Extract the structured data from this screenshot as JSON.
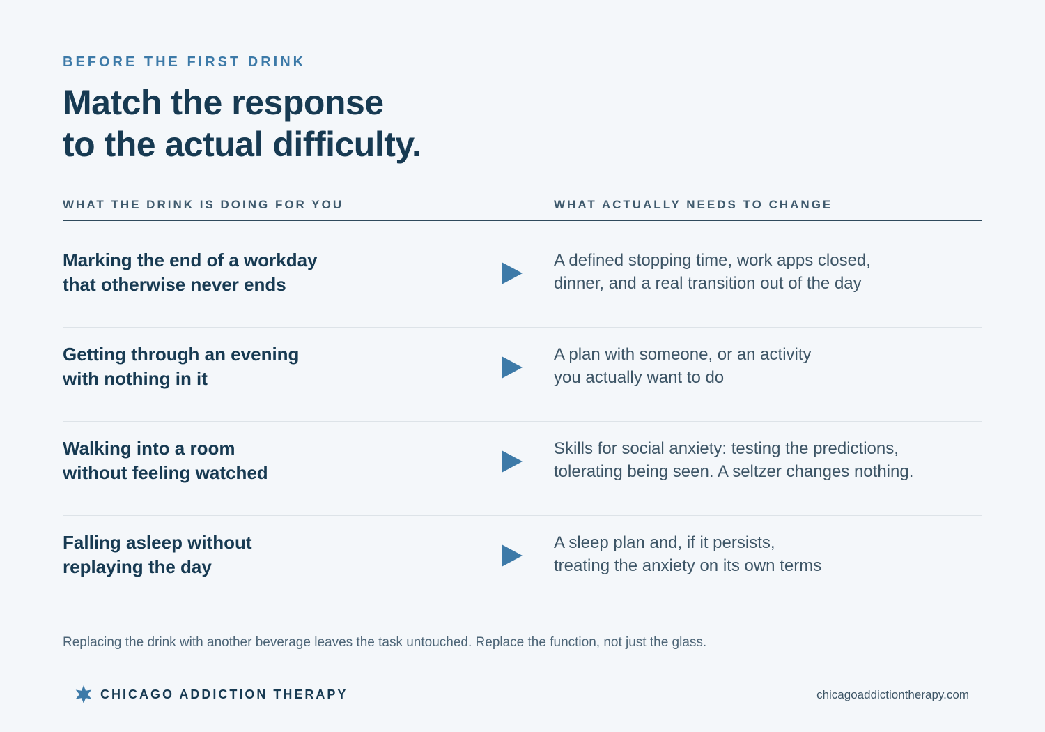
{
  "header": {
    "eyebrow": "BEFORE THE FIRST DRINK",
    "title": [
      "Match the response",
      "to the actual difficulty."
    ]
  },
  "table": {
    "columns": [
      "WHAT THE DRINK IS DOING FOR YOU",
      "WHAT ACTUALLY NEEDS TO CHANGE"
    ],
    "rows": [
      {
        "need": [
          "Marking the end of a workday",
          "that otherwise never ends"
        ],
        "change": [
          "A defined stopping time, work apps closed,",
          "dinner, and a real transition out of the day"
        ]
      },
      {
        "need": [
          "Getting through an evening",
          "with nothing in it"
        ],
        "change": [
          "A plan with someone, or an activity",
          "you actually want to do"
        ]
      },
      {
        "need": [
          "Walking into a room",
          "without feeling watched"
        ],
        "change": [
          "Skills for social anxiety: testing the predictions,",
          "tolerating being seen. A seltzer changes nothing."
        ]
      },
      {
        "need": [
          "Falling asleep without",
          "replaying the day"
        ],
        "change": [
          "A sleep plan and, if it persists,",
          "treating the anxiety on its own terms"
        ]
      }
    ]
  },
  "footnote": "Replacing the drink with another beverage leaves the task untouched. Replace the function, not just the glass.",
  "footer": {
    "brand": "CHICAGO ADDICTION THERAPY",
    "url": "chicagoaddictiontherapy.com"
  }
}
